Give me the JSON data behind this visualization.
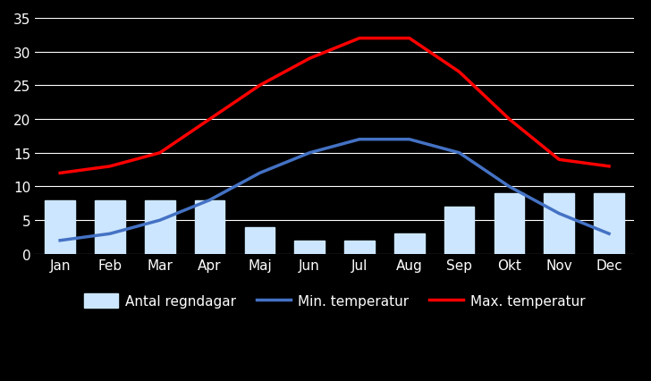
{
  "months": [
    "Jan",
    "Feb",
    "Mar",
    "Apr",
    "Maj",
    "Jun",
    "Jul",
    "Aug",
    "Sep",
    "Okt",
    "Nov",
    "Dec"
  ],
  "rain_days": [
    8,
    8,
    8,
    8,
    4,
    2,
    2,
    3,
    7,
    9,
    9,
    9
  ],
  "min_temp": [
    2,
    3,
    5,
    8,
    12,
    15,
    17,
    17,
    15,
    10,
    6,
    3
  ],
  "max_temp": [
    12,
    13,
    15,
    20,
    25,
    29,
    32,
    32,
    27,
    20,
    14,
    13
  ],
  "rain_color": "#cce6ff",
  "min_color": "#4472c4",
  "max_color": "#ff0000",
  "background_color": "#000000",
  "text_color": "#ffffff",
  "grid_color": "#ffffff",
  "ylim": [
    0,
    35
  ],
  "yticks": [
    0,
    5,
    10,
    15,
    20,
    25,
    30,
    35
  ],
  "ytick_labels": [
    "0",
    "5",
    "10",
    "15",
    "20",
    "25",
    "30",
    "35"
  ],
  "legend_labels": [
    "Antal regndagar",
    "Min. temperatur",
    "Max. temperatur"
  ]
}
